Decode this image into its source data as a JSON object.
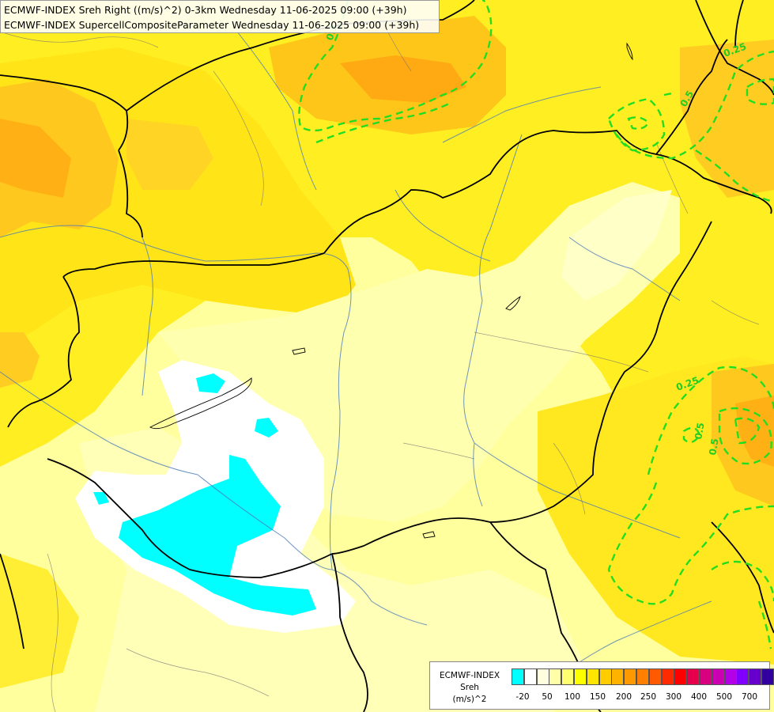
{
  "titles": {
    "line1": "ECMWF-INDEX Sreh Right ((m/s)^2) 0-3km Wednesday 11-06-2025 09:00 (+39h)",
    "line2": "ECMWF-INDEX SupercellCompositeParameter Wednesday 11-06-2025 09:00 (+39h)"
  },
  "contour_labels": [
    "0.5",
    "0.25",
    "0.5",
    "0.5",
    "0.25",
    "0.5"
  ],
  "legend": {
    "title_line1": "ECMWF-INDEX",
    "title_line2": "Sreh",
    "title_line3": "(m/s)^2",
    "colors": [
      "#00ffff",
      "#ffffff",
      "#ffffe0",
      "#ffffa8",
      "#ffff70",
      "#ffff00",
      "#ffe600",
      "#ffcc00",
      "#ffb300",
      "#ff9900",
      "#ff8000",
      "#ff5a00",
      "#ff2a00",
      "#ff0000",
      "#e6004c",
      "#d90080",
      "#cc00b3",
      "#b300e6",
      "#8000ff",
      "#6600cc",
      "#3300a0",
      "#000080"
    ],
    "ticks": [
      "-20",
      "50",
      "100",
      "150",
      "200",
      "250",
      "300",
      "400",
      "500",
      "700"
    ]
  }
}
